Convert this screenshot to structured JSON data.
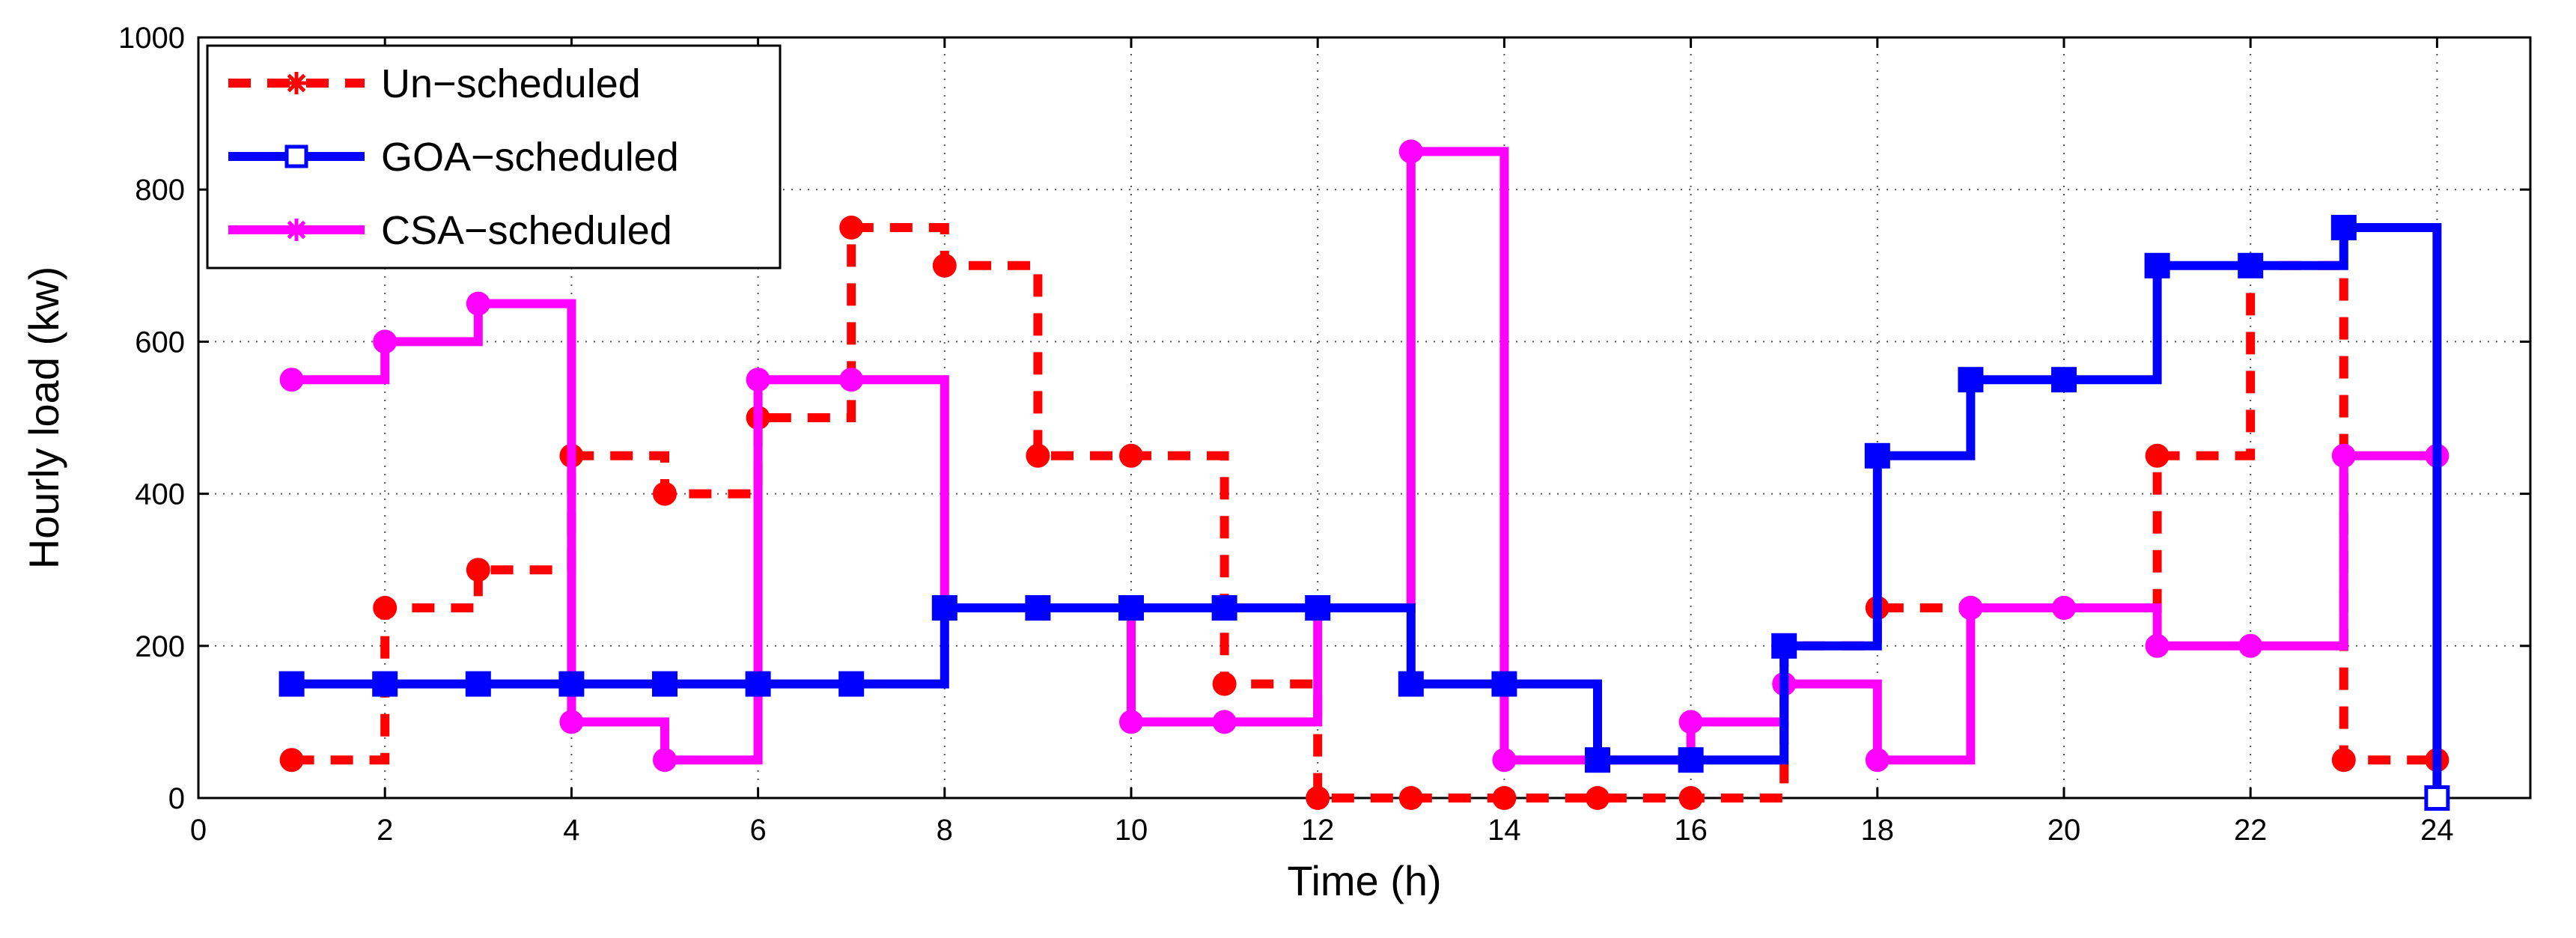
{
  "chart_data": {
    "type": "line",
    "step": "post",
    "title": "",
    "xlabel": "Time (h)",
    "ylabel": "Hourly load (kw)",
    "xlim": [
      0,
      25
    ],
    "ylim": [
      0,
      1000
    ],
    "xticks": [
      0,
      2,
      4,
      6,
      8,
      10,
      12,
      14,
      16,
      18,
      20,
      22,
      24
    ],
    "yticks": [
      0,
      200,
      400,
      600,
      800,
      1000
    ],
    "grid": true,
    "legend_position": "top-left",
    "x": [
      1,
      2,
      3,
      4,
      5,
      6,
      7,
      8,
      9,
      10,
      11,
      12,
      13,
      14,
      15,
      16,
      17,
      18,
      19,
      20,
      21,
      22,
      23,
      24
    ],
    "series": [
      {
        "name": "Un−scheduled",
        "color": "#ff0000",
        "line_style": "dashed",
        "marker": "circle",
        "legend_marker": "asterisk",
        "values": [
          50,
          250,
          300,
          450,
          400,
          500,
          750,
          700,
          450,
          450,
          150,
          0,
          0,
          0,
          0,
          0,
          200,
          250,
          250,
          250,
          450,
          700,
          50,
          50
        ]
      },
      {
        "name": "GOA−scheduled",
        "color": "#0000ff",
        "line_style": "solid",
        "marker": "square",
        "legend_marker": "square",
        "values": [
          150,
          150,
          150,
          150,
          150,
          150,
          150,
          250,
          250,
          250,
          250,
          250,
          150,
          150,
          50,
          50,
          200,
          450,
          550,
          550,
          700,
          700,
          750,
          0
        ]
      },
      {
        "name": "CSA−scheduled",
        "color": "#ff00ff",
        "line_style": "solid",
        "marker": "circle",
        "legend_marker": "asterisk",
        "values": [
          550,
          600,
          650,
          100,
          50,
          550,
          550,
          250,
          250,
          100,
          100,
          250,
          850,
          50,
          50,
          100,
          150,
          50,
          250,
          250,
          200,
          200,
          450,
          450
        ]
      }
    ]
  }
}
